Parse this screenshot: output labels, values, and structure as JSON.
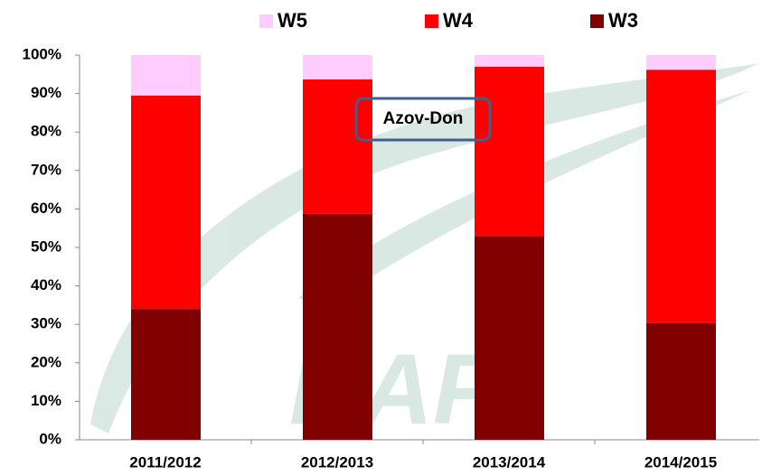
{
  "chart_data": {
    "type": "stacked_bar",
    "categories": [
      "2011/2012",
      "2012/2013",
      "2013/2014",
      "2014/2015"
    ],
    "series": [
      {
        "name": "W3",
        "color": "#800000",
        "values": [
          34,
          58.7,
          53,
          30.3
        ]
      },
      {
        "name": "W4",
        "color": "#ff0000",
        "values": [
          55.5,
          35,
          44,
          65.9
        ]
      },
      {
        "name": "W5",
        "color": "#ffccff",
        "values": [
          10.5,
          6.3,
          3,
          3.8
        ]
      }
    ],
    "ylim": [
      0,
      100
    ],
    "yticks": [
      {
        "value": 0,
        "label": "0%"
      },
      {
        "value": 10,
        "label": "10%"
      },
      {
        "value": 20,
        "label": "20%"
      },
      {
        "value": 30,
        "label": "30%"
      },
      {
        "value": 40,
        "label": "40%"
      },
      {
        "value": 50,
        "label": "50%"
      },
      {
        "value": 60,
        "label": "60%"
      },
      {
        "value": 70,
        "label": "70%"
      },
      {
        "value": 80,
        "label": "80%"
      },
      {
        "value": 90,
        "label": "90%"
      },
      {
        "value": 100,
        "label": "100%"
      }
    ],
    "annotation": "Azov-Don",
    "watermark": "KAP",
    "legend": "top"
  }
}
